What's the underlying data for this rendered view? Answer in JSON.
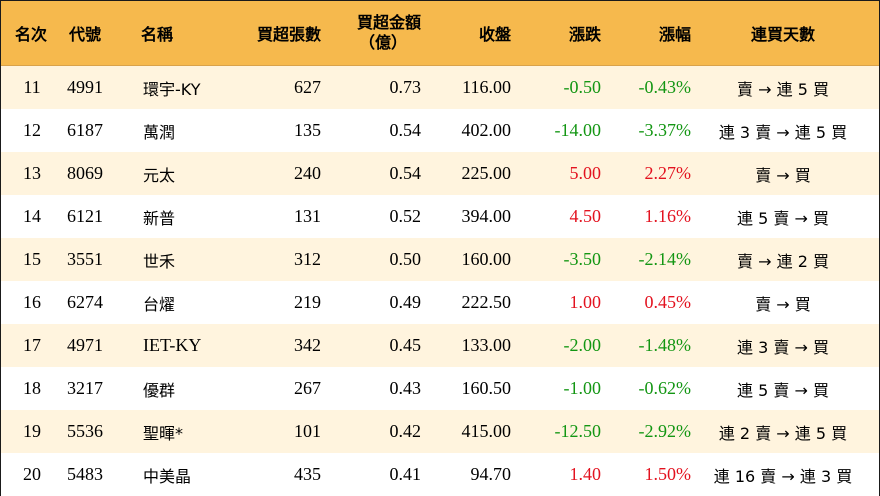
{
  "headers": {
    "rank": "名次",
    "code": "代號",
    "name": "名稱",
    "net_buy_lots": "買超張數",
    "net_buy_amount_line1": "買超金額",
    "net_buy_amount_line2": "（億）",
    "close": "收盤",
    "change": "漲跌",
    "change_pct": "漲幅",
    "streak": "連買天數"
  },
  "colors": {
    "header_bg": "#f6b94d",
    "odd_row_bg": "#fff4de",
    "up": "#e3121f",
    "down": "#139613"
  },
  "rows": [
    {
      "rank": "11",
      "code": "4991",
      "name": "環宇-KY",
      "lots": "627",
      "amount": "0.73",
      "close": "116.00",
      "change": "-0.50",
      "pct": "-0.43%",
      "direction": "down",
      "streak": "賣 → 連 5 買"
    },
    {
      "rank": "12",
      "code": "6187",
      "name": "萬潤",
      "lots": "135",
      "amount": "0.54",
      "close": "402.00",
      "change": "-14.00",
      "pct": "-3.37%",
      "direction": "down",
      "streak": "連 3 賣 → 連 5 買"
    },
    {
      "rank": "13",
      "code": "8069",
      "name": "元太",
      "lots": "240",
      "amount": "0.54",
      "close": "225.00",
      "change": "5.00",
      "pct": "2.27%",
      "direction": "up",
      "streak": "賣 → 買"
    },
    {
      "rank": "14",
      "code": "6121",
      "name": "新普",
      "lots": "131",
      "amount": "0.52",
      "close": "394.00",
      "change": "4.50",
      "pct": "1.16%",
      "direction": "up",
      "streak": "連 5 賣 → 買"
    },
    {
      "rank": "15",
      "code": "3551",
      "name": "世禾",
      "lots": "312",
      "amount": "0.50",
      "close": "160.00",
      "change": "-3.50",
      "pct": "-2.14%",
      "direction": "down",
      "streak": "賣 → 連 2 買"
    },
    {
      "rank": "16",
      "code": "6274",
      "name": "台燿",
      "lots": "219",
      "amount": "0.49",
      "close": "222.50",
      "change": "1.00",
      "pct": "0.45%",
      "direction": "up",
      "streak": "賣 → 買"
    },
    {
      "rank": "17",
      "code": "4971",
      "name": "IET-KY",
      "lots": "342",
      "amount": "0.45",
      "close": "133.00",
      "change": "-2.00",
      "pct": "-1.48%",
      "direction": "down",
      "streak": "連 3 賣 → 買"
    },
    {
      "rank": "18",
      "code": "3217",
      "name": "優群",
      "lots": "267",
      "amount": "0.43",
      "close": "160.50",
      "change": "-1.00",
      "pct": "-0.62%",
      "direction": "down",
      "streak": "連 5 賣 → 買"
    },
    {
      "rank": "19",
      "code": "5536",
      "name": "聖暉*",
      "lots": "101",
      "amount": "0.42",
      "close": "415.00",
      "change": "-12.50",
      "pct": "-2.92%",
      "direction": "down",
      "streak": "連 2 賣 → 連 5 買"
    },
    {
      "rank": "20",
      "code": "5483",
      "name": "中美晶",
      "lots": "435",
      "amount": "0.41",
      "close": "94.70",
      "change": "1.40",
      "pct": "1.50%",
      "direction": "up",
      "streak": "連 16 賣 → 連 3 買"
    }
  ]
}
